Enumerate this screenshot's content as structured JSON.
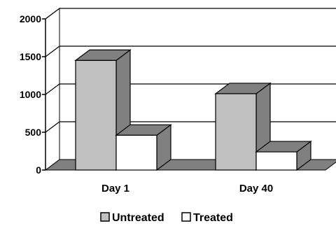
{
  "chart_data": {
    "type": "bar",
    "style": "3d-clustered",
    "categories": [
      "Day 1",
      "Day 40"
    ],
    "series": [
      {
        "name": "Untreated",
        "values": [
          1450,
          1010
        ],
        "color": "#c0c0c0",
        "side_color": "#808080"
      },
      {
        "name": "Treated",
        "values": [
          460,
          240
        ],
        "color": "#ffffff",
        "side_color": "#808080"
      }
    ],
    "y_ticks": [
      "0",
      "500",
      "1000",
      "1500",
      "2000"
    ],
    "ylim": [
      0,
      2000
    ],
    "grid": true,
    "legend_position": "bottom",
    "floor_color": "#808080"
  }
}
